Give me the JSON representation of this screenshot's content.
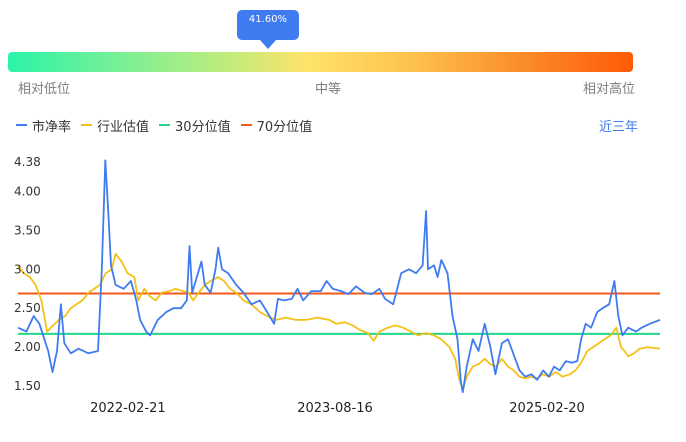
{
  "gauge": {
    "value_label": "41.60%",
    "percent": 41.6,
    "low_label": "相对低位",
    "mid_label": "中等",
    "high_label": "相对高位",
    "colors": [
      "#2cf4a8",
      "#ffe36a",
      "#ff5a06"
    ]
  },
  "legend": {
    "items": [
      {
        "label": "市净率",
        "color": "#3f7bf1"
      },
      {
        "label": "行业估值",
        "color": "#f5c118"
      },
      {
        "label": "30分位值",
        "color": "#1ed78a"
      },
      {
        "label": "70分位值",
        "color": "#f2591a"
      }
    ],
    "range_label": "近三年"
  },
  "chart_data": {
    "type": "line",
    "x_start": "2021-05-10",
    "x_end": "2025-12-12",
    "x_ticks": [
      "2022-02-21",
      "2023-08-16",
      "2025-02-20"
    ],
    "y_ticks": [
      "4.38",
      "4.00",
      "3.50",
      "3.00",
      "2.50",
      "2.00",
      "1.50"
    ],
    "ylim": [
      1.5,
      4.38
    ],
    "grid": false,
    "legend_position": "top-left",
    "percentile_30": 2.17,
    "percentile_70": 2.69,
    "series": [
      {
        "name": "市净率",
        "color": "#3f7bf1",
        "points": [
          [
            "2021-05-10",
            2.25
          ],
          [
            "2021-06-01",
            2.2
          ],
          [
            "2021-06-20",
            2.4
          ],
          [
            "2021-07-05",
            2.3
          ],
          [
            "2021-07-18",
            2.1
          ],
          [
            "2021-07-28",
            1.95
          ],
          [
            "2021-08-08",
            1.68
          ],
          [
            "2021-08-20",
            1.95
          ],
          [
            "2021-08-30",
            2.55
          ],
          [
            "2021-09-08",
            2.05
          ],
          [
            "2021-09-25",
            1.92
          ],
          [
            "2021-10-15",
            1.98
          ],
          [
            "2021-11-10",
            1.92
          ],
          [
            "2021-12-05",
            1.95
          ],
          [
            "2021-12-15",
            3.0
          ],
          [
            "2021-12-24",
            4.4
          ],
          [
            "2021-12-31",
            3.8
          ],
          [
            "2022-01-08",
            3.05
          ],
          [
            "2022-01-20",
            2.8
          ],
          [
            "2022-02-10",
            2.75
          ],
          [
            "2022-03-01",
            2.85
          ],
          [
            "2022-03-15",
            2.6
          ],
          [
            "2022-03-25",
            2.35
          ],
          [
            "2022-04-10",
            2.2
          ],
          [
            "2022-04-20",
            2.15
          ],
          [
            "2022-05-10",
            2.35
          ],
          [
            "2022-06-01",
            2.45
          ],
          [
            "2022-06-20",
            2.5
          ],
          [
            "2022-07-10",
            2.5
          ],
          [
            "2022-07-25",
            2.6
          ],
          [
            "2022-08-01",
            3.3
          ],
          [
            "2022-08-08",
            2.7
          ],
          [
            "2022-08-20",
            2.9
          ],
          [
            "2022-09-01",
            3.1
          ],
          [
            "2022-09-10",
            2.8
          ],
          [
            "2022-09-25",
            2.7
          ],
          [
            "2022-10-08",
            3.0
          ],
          [
            "2022-10-15",
            3.28
          ],
          [
            "2022-10-25",
            3.0
          ],
          [
            "2022-11-10",
            2.95
          ],
          [
            "2022-12-01",
            2.8
          ],
          [
            "2022-12-20",
            2.7
          ],
          [
            "2023-01-10",
            2.55
          ],
          [
            "2023-02-01",
            2.6
          ],
          [
            "2023-02-20",
            2.45
          ],
          [
            "2023-03-10",
            2.3
          ],
          [
            "2023-03-20",
            2.62
          ],
          [
            "2023-04-05",
            2.6
          ],
          [
            "2023-04-25",
            2.62
          ],
          [
            "2023-05-10",
            2.75
          ],
          [
            "2023-05-25",
            2.6
          ],
          [
            "2023-06-15",
            2.72
          ],
          [
            "2023-07-10",
            2.72
          ],
          [
            "2023-07-25",
            2.85
          ],
          [
            "2023-08-10",
            2.75
          ],
          [
            "2023-09-01",
            2.72
          ],
          [
            "2023-09-20",
            2.68
          ],
          [
            "2023-10-10",
            2.78
          ],
          [
            "2023-11-01",
            2.7
          ],
          [
            "2023-11-20",
            2.68
          ],
          [
            "2023-12-10",
            2.75
          ],
          [
            "2023-12-25",
            2.62
          ],
          [
            "2024-01-15",
            2.55
          ],
          [
            "2024-02-05",
            2.95
          ],
          [
            "2024-02-25",
            3.0
          ],
          [
            "2024-03-15",
            2.95
          ],
          [
            "2024-04-01",
            3.05
          ],
          [
            "2024-04-10",
            3.75
          ],
          [
            "2024-04-15",
            3.0
          ],
          [
            "2024-05-01",
            3.05
          ],
          [
            "2024-05-10",
            2.9
          ],
          [
            "2024-05-20",
            3.12
          ],
          [
            "2024-06-05",
            2.95
          ],
          [
            "2024-06-18",
            2.4
          ],
          [
            "2024-07-01",
            2.1
          ],
          [
            "2024-07-10",
            1.55
          ],
          [
            "2024-07-15",
            1.42
          ],
          [
            "2024-07-25",
            1.75
          ],
          [
            "2024-08-10",
            2.1
          ],
          [
            "2024-08-25",
            1.95
          ],
          [
            "2024-09-10",
            2.3
          ],
          [
            "2024-09-25",
            2.0
          ],
          [
            "2024-10-08",
            1.65
          ],
          [
            "2024-10-25",
            2.05
          ],
          [
            "2024-11-10",
            2.1
          ],
          [
            "2024-11-25",
            1.9
          ],
          [
            "2024-12-10",
            1.7
          ],
          [
            "2024-12-25",
            1.62
          ],
          [
            "2025-01-10",
            1.65
          ],
          [
            "2025-01-25",
            1.58
          ],
          [
            "2025-02-10",
            1.7
          ],
          [
            "2025-02-25",
            1.62
          ],
          [
            "2025-03-10",
            1.75
          ],
          [
            "2025-03-25",
            1.7
          ],
          [
            "2025-04-10",
            1.82
          ],
          [
            "2025-04-25",
            1.8
          ],
          [
            "2025-05-10",
            1.82
          ],
          [
            "2025-05-20",
            2.1
          ],
          [
            "2025-06-01",
            2.3
          ],
          [
            "2025-06-15",
            2.25
          ],
          [
            "2025-07-01",
            2.45
          ],
          [
            "2025-07-15",
            2.5
          ],
          [
            "2025-08-01",
            2.55
          ],
          [
            "2025-08-15",
            2.85
          ],
          [
            "2025-08-25",
            2.4
          ],
          [
            "2025-09-05",
            2.15
          ],
          [
            "2025-09-20",
            2.25
          ],
          [
            "2025-10-10",
            2.2
          ],
          [
            "2025-10-25",
            2.25
          ],
          [
            "2025-11-15",
            2.3
          ],
          [
            "2025-12-12",
            2.35
          ]
        ]
      },
      {
        "name": "行业估值",
        "color": "#f5c118",
        "points": [
          [
            "2021-05-10",
            3.05
          ],
          [
            "2021-05-25",
            2.95
          ],
          [
            "2021-06-10",
            2.9
          ],
          [
            "2021-06-25",
            2.8
          ],
          [
            "2021-07-10",
            2.6
          ],
          [
            "2021-07-25",
            2.2
          ],
          [
            "2021-08-10",
            2.28
          ],
          [
            "2021-08-25",
            2.35
          ],
          [
            "2021-09-10",
            2.4
          ],
          [
            "2021-09-25",
            2.5
          ],
          [
            "2021-10-10",
            2.55
          ],
          [
            "2021-10-25",
            2.6
          ],
          [
            "2021-11-10",
            2.7
          ],
          [
            "2021-11-25",
            2.75
          ],
          [
            "2021-12-10",
            2.8
          ],
          [
            "2021-12-25",
            2.95
          ],
          [
            "2022-01-10",
            3.0
          ],
          [
            "2022-01-20",
            3.2
          ],
          [
            "2022-02-05",
            3.1
          ],
          [
            "2022-02-20",
            2.95
          ],
          [
            "2022-03-10",
            2.9
          ],
          [
            "2022-03-20",
            2.6
          ],
          [
            "2022-04-05",
            2.75
          ],
          [
            "2022-04-20",
            2.65
          ],
          [
            "2022-05-05",
            2.6
          ],
          [
            "2022-05-20",
            2.7
          ],
          [
            "2022-06-10",
            2.72
          ],
          [
            "2022-06-25",
            2.75
          ],
          [
            "2022-07-15",
            2.72
          ],
          [
            "2022-07-30",
            2.7
          ],
          [
            "2022-08-10",
            2.6
          ],
          [
            "2022-08-25",
            2.7
          ],
          [
            "2022-09-10",
            2.8
          ],
          [
            "2022-09-25",
            2.85
          ],
          [
            "2022-10-15",
            2.9
          ],
          [
            "2022-10-30",
            2.85
          ],
          [
            "2022-11-15",
            2.75
          ],
          [
            "2022-12-01",
            2.7
          ],
          [
            "2022-12-20",
            2.6
          ],
          [
            "2023-01-10",
            2.55
          ],
          [
            "2023-02-01",
            2.45
          ],
          [
            "2023-02-20",
            2.4
          ],
          [
            "2023-03-15",
            2.35
          ],
          [
            "2023-04-10",
            2.38
          ],
          [
            "2023-05-05",
            2.35
          ],
          [
            "2023-06-01",
            2.35
          ],
          [
            "2023-07-01",
            2.38
          ],
          [
            "2023-08-01",
            2.35
          ],
          [
            "2023-08-20",
            2.3
          ],
          [
            "2023-09-10",
            2.32
          ],
          [
            "2023-10-01",
            2.28
          ],
          [
            "2023-10-20",
            2.22
          ],
          [
            "2023-11-10",
            2.18
          ],
          [
            "2023-11-25",
            2.08
          ],
          [
            "2023-12-10",
            2.2
          ],
          [
            "2024-01-01",
            2.25
          ],
          [
            "2024-01-20",
            2.28
          ],
          [
            "2024-02-10",
            2.25
          ],
          [
            "2024-03-01",
            2.2
          ],
          [
            "2024-03-20",
            2.15
          ],
          [
            "2024-04-10",
            2.18
          ],
          [
            "2024-05-01",
            2.15
          ],
          [
            "2024-05-20",
            2.1
          ],
          [
            "2024-06-10",
            2.0
          ],
          [
            "2024-06-25",
            1.85
          ],
          [
            "2024-07-05",
            1.6
          ],
          [
            "2024-07-15",
            1.45
          ],
          [
            "2024-07-25",
            1.62
          ],
          [
            "2024-08-10",
            1.75
          ],
          [
            "2024-08-25",
            1.78
          ],
          [
            "2024-09-10",
            1.85
          ],
          [
            "2024-09-25",
            1.78
          ],
          [
            "2024-10-10",
            1.75
          ],
          [
            "2024-10-25",
            1.85
          ],
          [
            "2024-11-10",
            1.75
          ],
          [
            "2024-11-25",
            1.7
          ],
          [
            "2024-12-10",
            1.62
          ],
          [
            "2024-12-25",
            1.6
          ],
          [
            "2025-01-10",
            1.62
          ],
          [
            "2025-01-25",
            1.6
          ],
          [
            "2025-02-10",
            1.65
          ],
          [
            "2025-02-25",
            1.62
          ],
          [
            "2025-03-15",
            1.68
          ],
          [
            "2025-04-01",
            1.62
          ],
          [
            "2025-04-20",
            1.65
          ],
          [
            "2025-05-05",
            1.7
          ],
          [
            "2025-05-20",
            1.8
          ],
          [
            "2025-06-05",
            1.95
          ],
          [
            "2025-06-20",
            2.0
          ],
          [
            "2025-07-05",
            2.05
          ],
          [
            "2025-07-20",
            2.1
          ],
          [
            "2025-08-05",
            2.15
          ],
          [
            "2025-08-20",
            2.25
          ],
          [
            "2025-09-01",
            2.0
          ],
          [
            "2025-09-10",
            1.95
          ],
          [
            "2025-09-20",
            1.88
          ],
          [
            "2025-10-05",
            1.92
          ],
          [
            "2025-10-20",
            1.98
          ],
          [
            "2025-11-10",
            2.0
          ],
          [
            "2025-12-12",
            1.98
          ]
        ]
      }
    ]
  }
}
